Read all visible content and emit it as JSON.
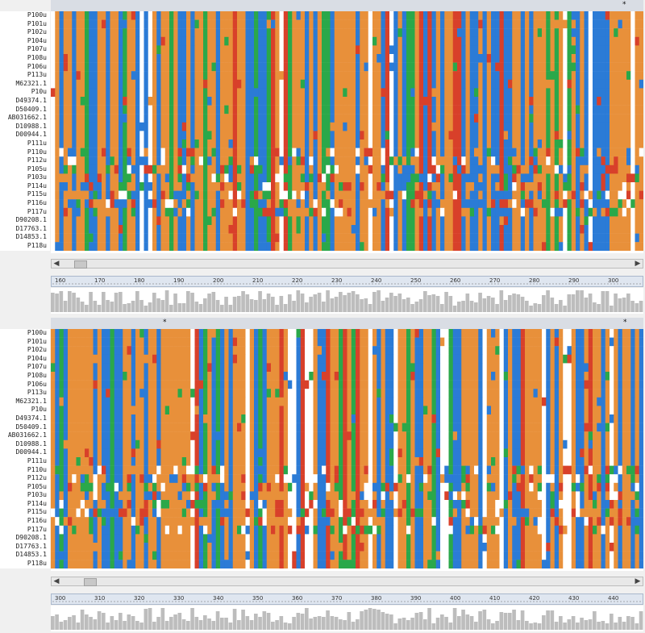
{
  "sequence_names": [
    "P100u",
    "P101u",
    "P102u",
    "P104u",
    "P107u",
    "P108u",
    "P106u",
    "P113u",
    "M62321.1",
    "P10u",
    "D49374.1",
    "D50409.1",
    "AB031662.1",
    "D10988.1",
    "D00944.1",
    "P111u",
    "P110u",
    "P112u",
    "P105u",
    "P103u",
    "P114u",
    "P115u",
    "P116u",
    "P117u",
    "D90208.1",
    "D17763.1",
    "D14853.1",
    "P118u"
  ],
  "panels": [
    {
      "ruler_ticks": [
        "160",
        "170",
        "180",
        "190",
        "200",
        "210",
        "220",
        "230",
        "240",
        "250",
        "260",
        "270",
        "280",
        "290",
        "300"
      ]
    },
    {
      "ruler_ticks": [
        "300",
        "310",
        "320",
        "330",
        "340",
        "350",
        "360",
        "370",
        "380",
        "390",
        "400",
        "410",
        "420",
        "430",
        "440"
      ]
    }
  ],
  "consensus_marker": "*",
  "icons": {
    "scroll_left": "triangle-left",
    "scroll_right": "triangle-right"
  },
  "colors": {
    "A": "#2b7bd6",
    "C": "#e8903a",
    "G": "#e8903a",
    "T": "#2aa84a",
    "gap": "#ffffff",
    "R": "#d8402a",
    "consensus_bar": "#bdbdbd"
  }
}
